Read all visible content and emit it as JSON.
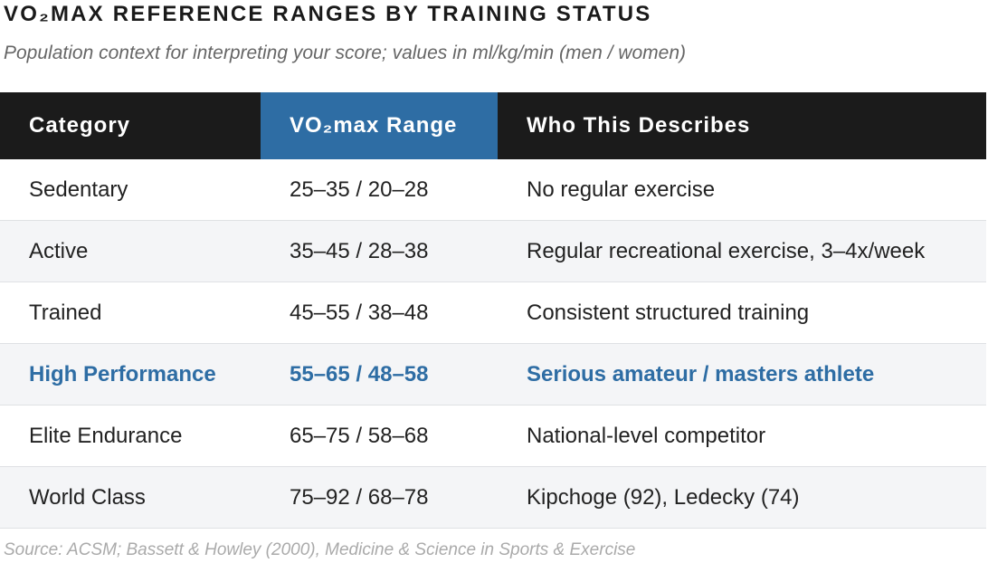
{
  "header": {
    "title": "VO₂MAX REFERENCE RANGES BY TRAINING STATUS",
    "subtitle": "Population context for interpreting your score; values in ml/kg/min (men / women)"
  },
  "table": {
    "columns": [
      "Category",
      "VO₂max Range",
      "Who This Describes"
    ],
    "rows": [
      [
        "Sedentary",
        "25–35 / 20–28",
        "No regular exercise"
      ],
      [
        "Active",
        "35–45 / 28–38",
        "Regular recreational exercise, 3–4x/week"
      ],
      [
        "Trained",
        "45–55 / 38–48",
        "Consistent structured training"
      ],
      [
        "High Performance",
        "55–65 / 48–58",
        "Serious amateur / masters athlete"
      ],
      [
        "Elite Endurance",
        "65–75 / 58–68",
        "National-level competitor"
      ],
      [
        "World Class",
        "75–92 / 68–78",
        "Kipchoge (92), Ledecky (74)"
      ]
    ]
  },
  "footer": {
    "source": "Source: ACSM; Bassett & Howley (2000), Medicine & Science in Sports & Exercise"
  }
}
